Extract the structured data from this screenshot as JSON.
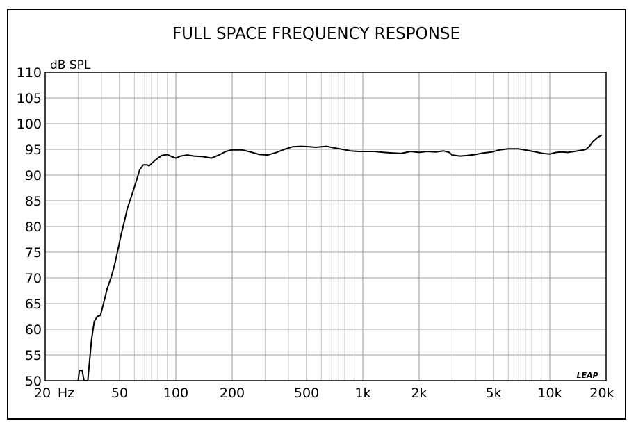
{
  "chart_data": {
    "type": "line",
    "title": "FULL SPACE FREQUENCY RESPONSE",
    "ylabel": "dB SPL",
    "xscale": "log",
    "xlim": [
      20,
      20000
    ],
    "ylim": [
      50,
      110
    ],
    "grid": true,
    "legend": "none",
    "watermark": "LEAP",
    "x_ticks": [
      {
        "value": 20,
        "label": "20"
      },
      {
        "value": 50,
        "label": "50"
      },
      {
        "value": 100,
        "label": "100"
      },
      {
        "value": 200,
        "label": "200"
      },
      {
        "value": 500,
        "label": "500"
      },
      {
        "value": 1000,
        "label": "1k"
      },
      {
        "value": 2000,
        "label": "2k"
      },
      {
        "value": 5000,
        "label": "5k"
      },
      {
        "value": 10000,
        "label": "10k"
      },
      {
        "value": 20000,
        "label": "20k"
      }
    ],
    "x_unit_label": "Hz",
    "y_ticks": [
      {
        "value": 110,
        "label": "110"
      },
      {
        "value": 105,
        "label": "105"
      },
      {
        "value": 100,
        "label": "100"
      },
      {
        "value": 95,
        "label": "95"
      },
      {
        "value": 90,
        "label": "90"
      },
      {
        "value": 85,
        "label": "85"
      },
      {
        "value": 80,
        "label": "80"
      },
      {
        "value": 75,
        "label": "75"
      },
      {
        "value": 70,
        "label": "70"
      },
      {
        "value": 65,
        "label": "65"
      },
      {
        "value": 60,
        "label": "60"
      },
      {
        "value": 55,
        "label": "55"
      },
      {
        "value": 50,
        "label": "50"
      }
    ],
    "series": [
      {
        "color": "#000000",
        "points": [
          [
            30.0,
            50.0
          ],
          [
            30.5,
            52.0
          ],
          [
            31.5,
            52.0
          ],
          [
            32.3,
            50.0
          ],
          [
            33.8,
            50.0
          ],
          [
            34.6,
            54.0
          ],
          [
            35.4,
            58.0
          ],
          [
            36.6,
            61.5
          ],
          [
            38.0,
            62.5
          ],
          [
            39.5,
            62.7
          ],
          [
            41.0,
            65.0
          ],
          [
            43.0,
            68.0
          ],
          [
            45.0,
            70.0
          ],
          [
            47.0,
            72.5
          ],
          [
            49.0,
            75.5
          ],
          [
            51.0,
            78.5
          ],
          [
            53.0,
            81.0
          ],
          [
            55.0,
            83.5
          ],
          [
            58.0,
            86.0
          ],
          [
            61.0,
            88.5
          ],
          [
            64.0,
            91.0
          ],
          [
            67.0,
            92.0
          ],
          [
            70.0,
            92.0
          ],
          [
            72.0,
            91.8
          ],
          [
            74.0,
            92.2
          ],
          [
            77.0,
            92.8
          ],
          [
            80.0,
            93.3
          ],
          [
            84.0,
            93.8
          ],
          [
            90.0,
            94.0
          ],
          [
            95.0,
            93.6
          ],
          [
            100.0,
            93.3
          ],
          [
            106.0,
            93.7
          ],
          [
            115.0,
            93.9
          ],
          [
            125.0,
            93.7
          ],
          [
            140.0,
            93.6
          ],
          [
            155.0,
            93.3
          ],
          [
            170.0,
            93.9
          ],
          [
            185.0,
            94.6
          ],
          [
            200.0,
            94.9
          ],
          [
            225.0,
            94.9
          ],
          [
            250.0,
            94.5
          ],
          [
            280.0,
            94.0
          ],
          [
            310.0,
            93.9
          ],
          [
            345.0,
            94.4
          ],
          [
            380.0,
            95.0
          ],
          [
            420.0,
            95.5
          ],
          [
            470.0,
            95.6
          ],
          [
            520.0,
            95.5
          ],
          [
            560.0,
            95.4
          ],
          [
            600.0,
            95.5
          ],
          [
            640.0,
            95.6
          ],
          [
            700.0,
            95.3
          ],
          [
            780.0,
            95.0
          ],
          [
            860.0,
            94.7
          ],
          [
            950.0,
            94.6
          ],
          [
            1050.0,
            94.6
          ],
          [
            1150.0,
            94.6
          ],
          [
            1300.0,
            94.4
          ],
          [
            1450.0,
            94.3
          ],
          [
            1600.0,
            94.2
          ],
          [
            1800.0,
            94.6
          ],
          [
            2000.0,
            94.4
          ],
          [
            2200.0,
            94.6
          ],
          [
            2450.0,
            94.5
          ],
          [
            2700.0,
            94.7
          ],
          [
            2900.0,
            94.4
          ],
          [
            3000.0,
            93.9
          ],
          [
            3300.0,
            93.7
          ],
          [
            3600.0,
            93.8
          ],
          [
            4000.0,
            94.0
          ],
          [
            4400.0,
            94.3
          ],
          [
            4900.0,
            94.5
          ],
          [
            5400.0,
            94.9
          ],
          [
            6000.0,
            95.1
          ],
          [
            6800.0,
            95.1
          ],
          [
            7600.0,
            94.8
          ],
          [
            8400.0,
            94.5
          ],
          [
            9200.0,
            94.2
          ],
          [
            10000.0,
            94.1
          ],
          [
            10800.0,
            94.4
          ],
          [
            11500.0,
            94.5
          ],
          [
            12500.0,
            94.4
          ],
          [
            13500.0,
            94.6
          ],
          [
            14700.0,
            94.8
          ],
          [
            15600.0,
            95.0
          ],
          [
            16300.0,
            95.6
          ],
          [
            17000.0,
            96.5
          ],
          [
            18000.0,
            97.3
          ],
          [
            19000.0,
            97.8
          ]
        ]
      }
    ]
  }
}
